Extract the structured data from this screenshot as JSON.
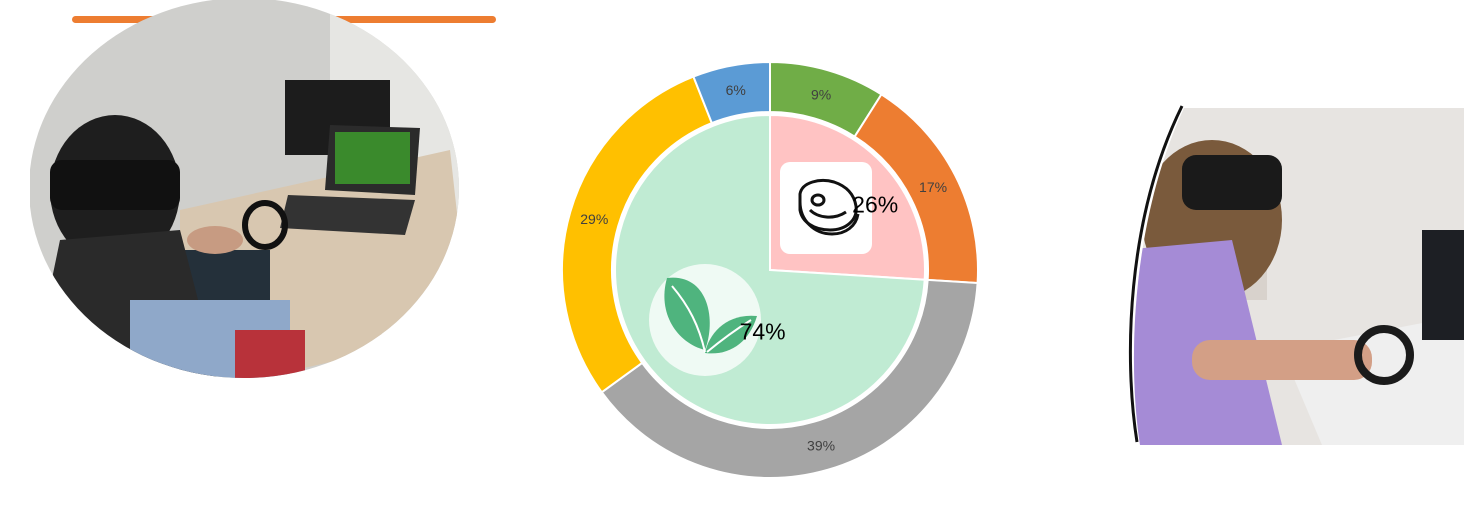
{
  "colors": {
    "accent_bar": "#ED7D31",
    "gray": "#A5A5A5",
    "yellow": "#FFC000",
    "blue": "#5B9BD5",
    "green": "#70AD47",
    "orange": "#ED7D31",
    "inner_plant": "#C0EBD3",
    "inner_meat": "#FFC3C3",
    "leaf": "#4FB47E"
  },
  "icons": {
    "meat": "steak-icon",
    "plant": "leaves-icon"
  },
  "chart_data": [
    {
      "type": "pie",
      "variant": "donut-outer-ring",
      "start": "12 o'clock",
      "direction": "clockwise",
      "slices": [
        {
          "label": "9%",
          "value": 9,
          "color": "#70AD47"
        },
        {
          "label": "17%",
          "value": 17,
          "color": "#ED7D31"
        },
        {
          "label": "39%",
          "value": 39,
          "color": "#A5A5A5"
        },
        {
          "label": "29%",
          "value": 29,
          "color": "#FFC000"
        },
        {
          "label": "6%",
          "value": 6,
          "color": "#5B9BD5"
        }
      ]
    },
    {
      "type": "pie",
      "variant": "inner-pie",
      "start": "12 o'clock",
      "direction": "clockwise",
      "slices": [
        {
          "label": "26%",
          "value": 26,
          "color": "#FFC3C3",
          "icon": "steak-icon"
        },
        {
          "label": "74%",
          "value": 74,
          "color": "#C0EBD3",
          "icon": "leaves-icon"
        }
      ]
    }
  ]
}
